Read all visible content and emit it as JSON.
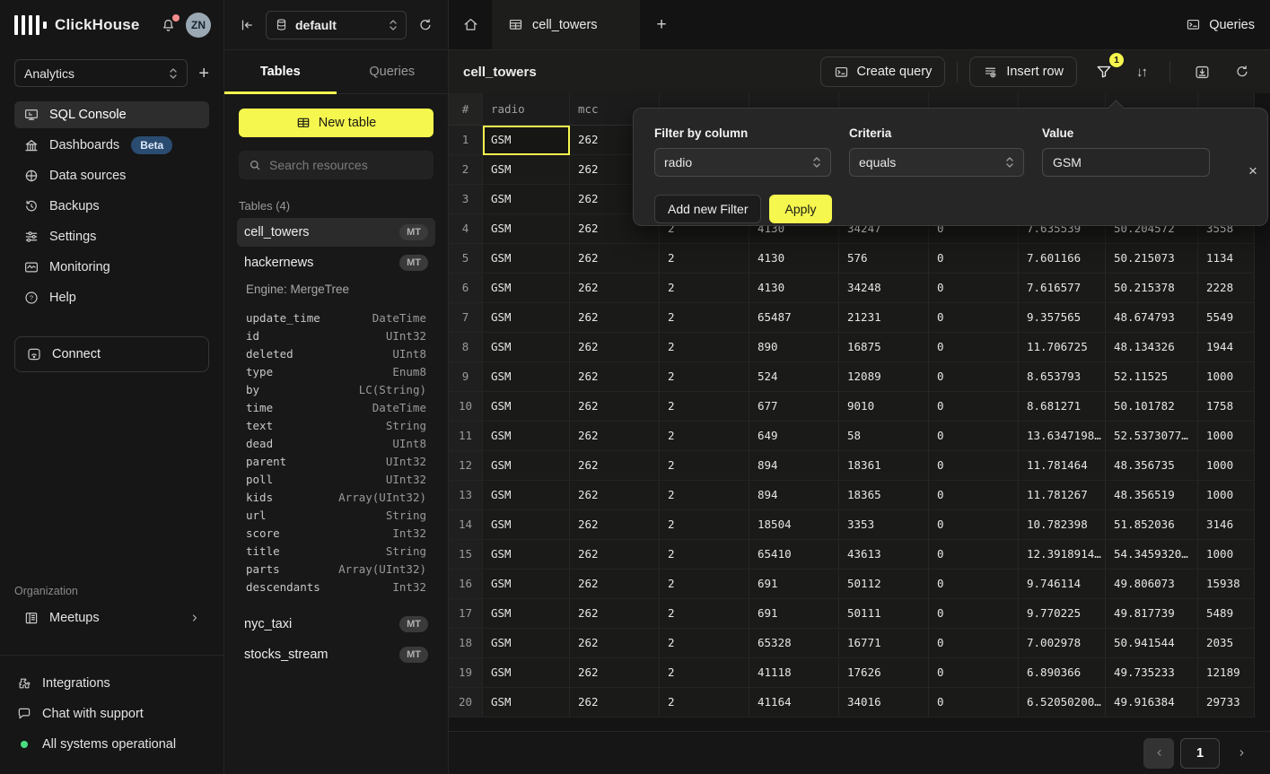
{
  "brand": {
    "name": "ClickHouse",
    "avatar": "ZN"
  },
  "sidebar": {
    "workspace": "Analytics",
    "items": [
      {
        "label": "SQL Console"
      },
      {
        "label": "Dashboards",
        "badge": "Beta"
      },
      {
        "label": "Data sources"
      },
      {
        "label": "Backups"
      },
      {
        "label": "Settings"
      },
      {
        "label": "Monitoring"
      },
      {
        "label": "Help"
      }
    ],
    "connect_label": "Connect",
    "org_label": "Organization",
    "meetups_label": "Meetups",
    "footer": {
      "integrations": "Integrations",
      "chat": "Chat with support",
      "status": "All systems operational"
    }
  },
  "explorer": {
    "database": "default",
    "tabs": {
      "tables": "Tables",
      "queries": "Queries"
    },
    "new_table_label": "New table",
    "search_placeholder": "Search resources",
    "tables_label": "Tables (4)",
    "tables": [
      {
        "name": "cell_towers",
        "badge": "MT"
      },
      {
        "name": "hackernews",
        "badge": "MT",
        "engine": "Engine: MergeTree",
        "columns": [
          {
            "name": "update_time",
            "type": "DateTime"
          },
          {
            "name": "id",
            "type": "UInt32"
          },
          {
            "name": "deleted",
            "type": "UInt8"
          },
          {
            "name": "type",
            "type": "Enum8"
          },
          {
            "name": "by",
            "type": "LC(String)"
          },
          {
            "name": "time",
            "type": "DateTime"
          },
          {
            "name": "text",
            "type": "String"
          },
          {
            "name": "dead",
            "type": "UInt8"
          },
          {
            "name": "parent",
            "type": "UInt32"
          },
          {
            "name": "poll",
            "type": "UInt32"
          },
          {
            "name": "kids",
            "type": "Array(UInt32)"
          },
          {
            "name": "url",
            "type": "String"
          },
          {
            "name": "score",
            "type": "Int32"
          },
          {
            "name": "title",
            "type": "String"
          },
          {
            "name": "parts",
            "type": "Array(UInt32)"
          },
          {
            "name": "descendants",
            "type": "Int32"
          }
        ]
      },
      {
        "name": "nyc_taxi",
        "badge": "MT"
      },
      {
        "name": "stocks_stream",
        "badge": "MT"
      }
    ]
  },
  "main": {
    "tab_label": "cell_towers",
    "queries_button": "Queries",
    "title": "cell_towers",
    "toolbar": {
      "create_query": "Create query",
      "insert_row": "Insert row",
      "filter_badge": "1"
    }
  },
  "grid": {
    "headers": [
      "#",
      "radio",
      "mcc",
      "",
      "",
      "",
      "",
      "",
      "",
      ""
    ],
    "selected_cell": [
      0,
      1
    ],
    "rows": [
      [
        "1",
        "GSM",
        "262",
        "",
        "",
        "",
        "",
        "",
        "",
        ""
      ],
      [
        "2",
        "GSM",
        "262",
        "",
        "",
        "",
        "",
        "",
        "",
        ""
      ],
      [
        "3",
        "GSM",
        "262",
        "",
        "",
        "",
        "",
        "",
        "",
        ""
      ],
      [
        "4",
        "GSM",
        "262",
        "2",
        "4130",
        "34247",
        "0",
        "7.635539",
        "50.204572",
        "3558"
      ],
      [
        "5",
        "GSM",
        "262",
        "2",
        "4130",
        "576",
        "0",
        "7.601166",
        "50.215073",
        "1134"
      ],
      [
        "6",
        "GSM",
        "262",
        "2",
        "4130",
        "34248",
        "0",
        "7.616577",
        "50.215378",
        "2228"
      ],
      [
        "7",
        "GSM",
        "262",
        "2",
        "65487",
        "21231",
        "0",
        "9.357565",
        "48.674793",
        "5549"
      ],
      [
        "8",
        "GSM",
        "262",
        "2",
        "890",
        "16875",
        "0",
        "11.706725",
        "48.134326",
        "1944"
      ],
      [
        "9",
        "GSM",
        "262",
        "2",
        "524",
        "12089",
        "0",
        "8.653793",
        "52.11525",
        "1000"
      ],
      [
        "10",
        "GSM",
        "262",
        "2",
        "677",
        "9010",
        "0",
        "8.681271",
        "50.101782",
        "1758"
      ],
      [
        "11",
        "GSM",
        "262",
        "2",
        "649",
        "58",
        "0",
        "13.6347198…",
        "52.5373077…",
        "1000"
      ],
      [
        "12",
        "GSM",
        "262",
        "2",
        "894",
        "18361",
        "0",
        "11.781464",
        "48.356735",
        "1000"
      ],
      [
        "13",
        "GSM",
        "262",
        "2",
        "894",
        "18365",
        "0",
        "11.781267",
        "48.356519",
        "1000"
      ],
      [
        "14",
        "GSM",
        "262",
        "2",
        "18504",
        "3353",
        "0",
        "10.782398",
        "51.852036",
        "3146"
      ],
      [
        "15",
        "GSM",
        "262",
        "2",
        "65410",
        "43613",
        "0",
        "12.3918914…",
        "54.3459320…",
        "1000"
      ],
      [
        "16",
        "GSM",
        "262",
        "2",
        "691",
        "50112",
        "0",
        "9.746114",
        "49.806073",
        "15938"
      ],
      [
        "17",
        "GSM",
        "262",
        "2",
        "691",
        "50111",
        "0",
        "9.770225",
        "49.817739",
        "5489"
      ],
      [
        "18",
        "GSM",
        "262",
        "2",
        "65328",
        "16771",
        "0",
        "7.002978",
        "50.941544",
        "2035"
      ],
      [
        "19",
        "GSM",
        "262",
        "2",
        "41118",
        "17626",
        "0",
        "6.890366",
        "49.735233",
        "12189"
      ],
      [
        "20",
        "GSM",
        "262",
        "2",
        "41164",
        "34016",
        "0",
        "6.52050200…",
        "49.916384",
        "29733"
      ]
    ]
  },
  "filter_popup": {
    "column_label": "Filter by column",
    "column_value": "radio",
    "criteria_label": "Criteria",
    "criteria_value": "equals",
    "value_label": "Value",
    "value": "GSM",
    "add_button": "Add new Filter",
    "apply_button": "Apply"
  },
  "pagination": {
    "page": "1"
  },
  "colors": {
    "accent": "#F5F74E",
    "background": "#141414"
  }
}
